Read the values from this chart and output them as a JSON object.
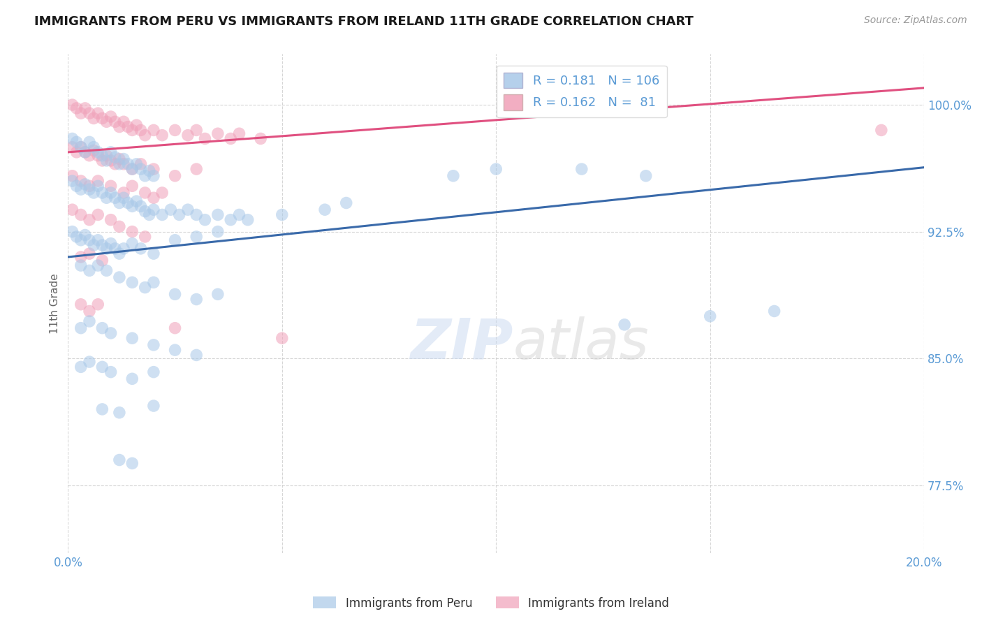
{
  "title": "IMMIGRANTS FROM PERU VS IMMIGRANTS FROM IRELAND 11TH GRADE CORRELATION CHART",
  "source_text": "Source: ZipAtlas.com",
  "ylabel": "11th Grade",
  "xlim": [
    0.0,
    0.2
  ],
  "ylim": [
    0.735,
    1.03
  ],
  "xticks": [
    0.0,
    0.05,
    0.1,
    0.15,
    0.2
  ],
  "xticklabels": [
    "0.0%",
    "",
    "",
    "",
    "20.0%"
  ],
  "yticks": [
    0.775,
    0.85,
    0.925,
    1.0
  ],
  "yticklabels": [
    "77.5%",
    "85.0%",
    "92.5%",
    "100.0%"
  ],
  "peru_color": "#A8C8E8",
  "ireland_color": "#F0A0B8",
  "peru_R": 0.181,
  "peru_N": 106,
  "ireland_R": 0.162,
  "ireland_N": 81,
  "peru_line_color": "#3A6AAA",
  "ireland_line_color": "#E05080",
  "legend_label_peru": "Immigrants from Peru",
  "legend_label_ireland": "Immigrants from Ireland",
  "background_color": "#FFFFFF",
  "grid_color": "#CCCCCC",
  "axis_color": "#5B9BD5",
  "peru_trend_x": [
    0.0,
    0.2
  ],
  "peru_trend_y": [
    0.91,
    0.963
  ],
  "ireland_trend_x": [
    0.0,
    0.2
  ],
  "ireland_trend_y": [
    0.972,
    1.01
  ],
  "peru_scatter": [
    [
      0.001,
      0.98
    ],
    [
      0.002,
      0.978
    ],
    [
      0.003,
      0.975
    ],
    [
      0.004,
      0.972
    ],
    [
      0.005,
      0.978
    ],
    [
      0.006,
      0.975
    ],
    [
      0.007,
      0.972
    ],
    [
      0.008,
      0.97
    ],
    [
      0.009,
      0.967
    ],
    [
      0.01,
      0.972
    ],
    [
      0.011,
      0.969
    ],
    [
      0.012,
      0.965
    ],
    [
      0.013,
      0.968
    ],
    [
      0.014,
      0.965
    ],
    [
      0.015,
      0.962
    ],
    [
      0.016,
      0.965
    ],
    [
      0.017,
      0.962
    ],
    [
      0.018,
      0.958
    ],
    [
      0.019,
      0.961
    ],
    [
      0.02,
      0.958
    ],
    [
      0.001,
      0.955
    ],
    [
      0.002,
      0.952
    ],
    [
      0.003,
      0.95
    ],
    [
      0.004,
      0.953
    ],
    [
      0.005,
      0.95
    ],
    [
      0.006,
      0.948
    ],
    [
      0.007,
      0.952
    ],
    [
      0.008,
      0.948
    ],
    [
      0.009,
      0.945
    ],
    [
      0.01,
      0.948
    ],
    [
      0.011,
      0.945
    ],
    [
      0.012,
      0.942
    ],
    [
      0.013,
      0.945
    ],
    [
      0.014,
      0.942
    ],
    [
      0.015,
      0.94
    ],
    [
      0.016,
      0.943
    ],
    [
      0.017,
      0.94
    ],
    [
      0.018,
      0.937
    ],
    [
      0.019,
      0.935
    ],
    [
      0.02,
      0.938
    ],
    [
      0.022,
      0.935
    ],
    [
      0.024,
      0.938
    ],
    [
      0.026,
      0.935
    ],
    [
      0.028,
      0.938
    ],
    [
      0.03,
      0.935
    ],
    [
      0.032,
      0.932
    ],
    [
      0.035,
      0.935
    ],
    [
      0.038,
      0.932
    ],
    [
      0.04,
      0.935
    ],
    [
      0.042,
      0.932
    ],
    [
      0.001,
      0.925
    ],
    [
      0.002,
      0.922
    ],
    [
      0.003,
      0.92
    ],
    [
      0.004,
      0.923
    ],
    [
      0.005,
      0.92
    ],
    [
      0.006,
      0.917
    ],
    [
      0.007,
      0.92
    ],
    [
      0.008,
      0.917
    ],
    [
      0.009,
      0.915
    ],
    [
      0.01,
      0.918
    ],
    [
      0.011,
      0.915
    ],
    [
      0.012,
      0.912
    ],
    [
      0.013,
      0.915
    ],
    [
      0.015,
      0.918
    ],
    [
      0.017,
      0.915
    ],
    [
      0.02,
      0.912
    ],
    [
      0.025,
      0.92
    ],
    [
      0.03,
      0.922
    ],
    [
      0.035,
      0.925
    ],
    [
      0.05,
      0.935
    ],
    [
      0.06,
      0.938
    ],
    [
      0.065,
      0.942
    ],
    [
      0.003,
      0.905
    ],
    [
      0.005,
      0.902
    ],
    [
      0.007,
      0.905
    ],
    [
      0.009,
      0.902
    ],
    [
      0.012,
      0.898
    ],
    [
      0.015,
      0.895
    ],
    [
      0.018,
      0.892
    ],
    [
      0.02,
      0.895
    ],
    [
      0.025,
      0.888
    ],
    [
      0.03,
      0.885
    ],
    [
      0.035,
      0.888
    ],
    [
      0.003,
      0.868
    ],
    [
      0.005,
      0.872
    ],
    [
      0.008,
      0.868
    ],
    [
      0.01,
      0.865
    ],
    [
      0.015,
      0.862
    ],
    [
      0.02,
      0.858
    ],
    [
      0.025,
      0.855
    ],
    [
      0.03,
      0.852
    ],
    [
      0.003,
      0.845
    ],
    [
      0.005,
      0.848
    ],
    [
      0.008,
      0.845
    ],
    [
      0.01,
      0.842
    ],
    [
      0.015,
      0.838
    ],
    [
      0.02,
      0.842
    ],
    [
      0.008,
      0.82
    ],
    [
      0.012,
      0.818
    ],
    [
      0.02,
      0.822
    ],
    [
      0.012,
      0.79
    ],
    [
      0.015,
      0.788
    ],
    [
      0.12,
      0.962
    ],
    [
      0.135,
      0.958
    ],
    [
      0.09,
      0.958
    ],
    [
      0.1,
      0.962
    ],
    [
      0.15,
      0.875
    ],
    [
      0.165,
      0.878
    ],
    [
      0.13,
      0.87
    ]
  ],
  "ireland_scatter": [
    [
      0.001,
      1.0
    ],
    [
      0.002,
      0.998
    ],
    [
      0.003,
      0.995
    ],
    [
      0.004,
      0.998
    ],
    [
      0.005,
      0.995
    ],
    [
      0.006,
      0.992
    ],
    [
      0.007,
      0.995
    ],
    [
      0.008,
      0.992
    ],
    [
      0.009,
      0.99
    ],
    [
      0.01,
      0.993
    ],
    [
      0.011,
      0.99
    ],
    [
      0.012,
      0.987
    ],
    [
      0.013,
      0.99
    ],
    [
      0.014,
      0.987
    ],
    [
      0.015,
      0.985
    ],
    [
      0.016,
      0.988
    ],
    [
      0.017,
      0.985
    ],
    [
      0.018,
      0.982
    ],
    [
      0.02,
      0.985
    ],
    [
      0.022,
      0.982
    ],
    [
      0.025,
      0.985
    ],
    [
      0.028,
      0.982
    ],
    [
      0.03,
      0.985
    ],
    [
      0.032,
      0.98
    ],
    [
      0.035,
      0.983
    ],
    [
      0.038,
      0.98
    ],
    [
      0.04,
      0.983
    ],
    [
      0.045,
      0.98
    ],
    [
      0.001,
      0.975
    ],
    [
      0.002,
      0.972
    ],
    [
      0.003,
      0.975
    ],
    [
      0.004,
      0.972
    ],
    [
      0.005,
      0.97
    ],
    [
      0.006,
      0.973
    ],
    [
      0.007,
      0.97
    ],
    [
      0.008,
      0.967
    ],
    [
      0.009,
      0.97
    ],
    [
      0.01,
      0.967
    ],
    [
      0.011,
      0.965
    ],
    [
      0.012,
      0.968
    ],
    [
      0.013,
      0.965
    ],
    [
      0.015,
      0.962
    ],
    [
      0.017,
      0.965
    ],
    [
      0.02,
      0.962
    ],
    [
      0.025,
      0.958
    ],
    [
      0.03,
      0.962
    ],
    [
      0.001,
      0.958
    ],
    [
      0.003,
      0.955
    ],
    [
      0.005,
      0.952
    ],
    [
      0.007,
      0.955
    ],
    [
      0.01,
      0.952
    ],
    [
      0.013,
      0.948
    ],
    [
      0.015,
      0.952
    ],
    [
      0.018,
      0.948
    ],
    [
      0.02,
      0.945
    ],
    [
      0.022,
      0.948
    ],
    [
      0.001,
      0.938
    ],
    [
      0.003,
      0.935
    ],
    [
      0.005,
      0.932
    ],
    [
      0.007,
      0.935
    ],
    [
      0.01,
      0.932
    ],
    [
      0.012,
      0.928
    ],
    [
      0.015,
      0.925
    ],
    [
      0.018,
      0.922
    ],
    [
      0.003,
      0.91
    ],
    [
      0.005,
      0.912
    ],
    [
      0.008,
      0.908
    ],
    [
      0.003,
      0.882
    ],
    [
      0.005,
      0.878
    ],
    [
      0.007,
      0.882
    ],
    [
      0.025,
      0.868
    ],
    [
      0.05,
      0.862
    ],
    [
      0.19,
      0.985
    ]
  ]
}
